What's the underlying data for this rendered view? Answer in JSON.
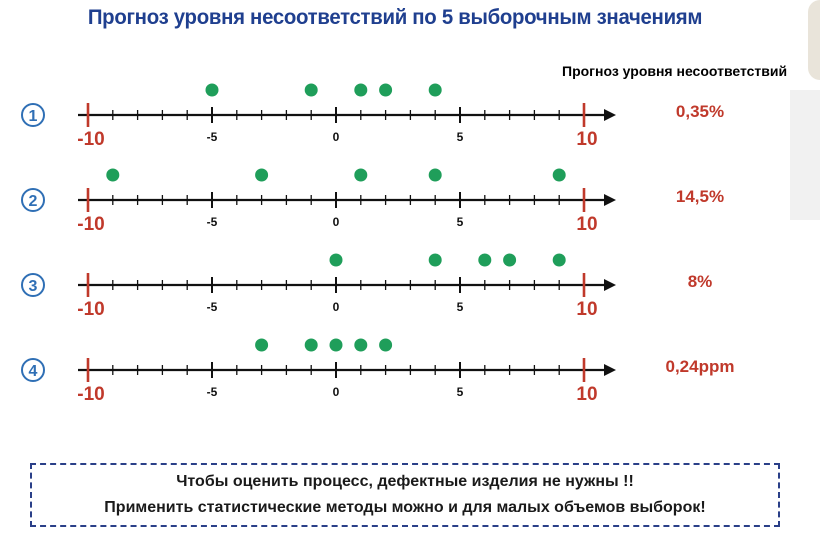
{
  "title": "Прогноз уровня несоответствий по 5 выборочным значениям",
  "column_header": "Прогноз уровня несоответствий",
  "colors": {
    "title": "#1f3f8f",
    "axis": "#111111",
    "end_ticks": "#c0392b",
    "points": "#1f9e5a",
    "forecast": "#c0392b",
    "badge": "#2f6fb5"
  },
  "axis": {
    "min": -10,
    "max": 10,
    "tick_labels": [
      {
        "value": -10,
        "text": "-10",
        "style": "end"
      },
      {
        "value": -5,
        "text": "-5",
        "style": "mid"
      },
      {
        "value": 0,
        "text": "0",
        "style": "mid"
      },
      {
        "value": 5,
        "text": "5",
        "style": "mid"
      },
      {
        "value": 10,
        "text": "10",
        "style": "end"
      }
    ]
  },
  "rows": [
    {
      "number": "1",
      "points": [
        -5,
        -1,
        1,
        2,
        4
      ],
      "forecast": "0,35%"
    },
    {
      "number": "2",
      "points": [
        -9,
        -3,
        1,
        4,
        9
      ],
      "forecast": "14,5%"
    },
    {
      "number": "3",
      "points": [
        0,
        4,
        6,
        7,
        9
      ],
      "forecast": "8%"
    },
    {
      "number": "4",
      "points": [
        -3,
        -1,
        0,
        1,
        2
      ],
      "forecast": "0,24ppm"
    }
  ],
  "note": {
    "line1": "Чтобы оценить процесс, дефектные изделия не нужны !!",
    "line2": "Применить статистические методы можно и для малых объемов выборок!"
  }
}
